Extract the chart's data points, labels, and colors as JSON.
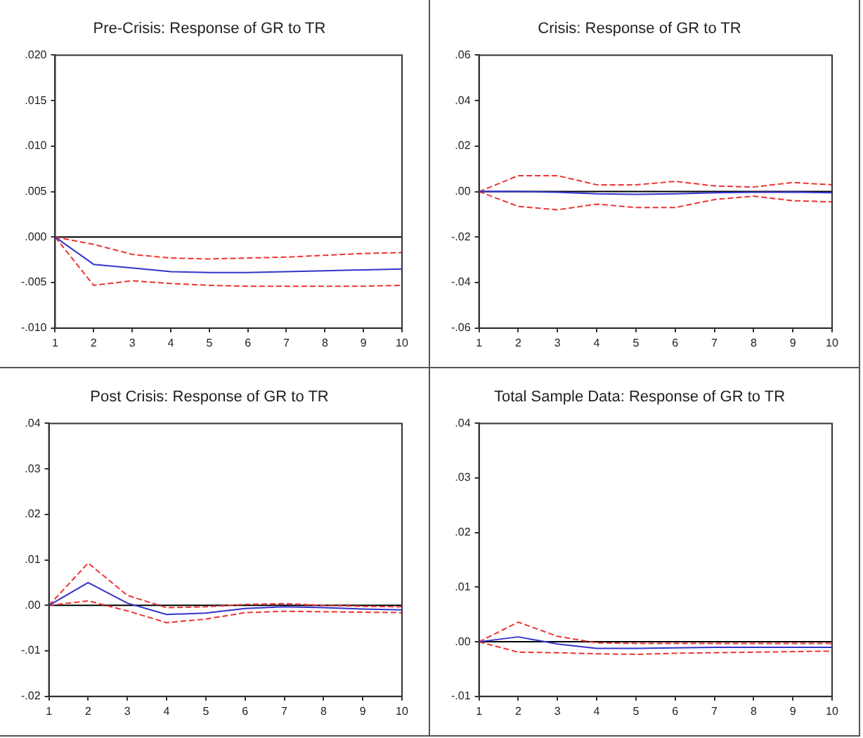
{
  "chart_data": [
    {
      "type": "line",
      "title": "Pre-Crisis: Response of GR to TR",
      "x": [
        1,
        2,
        3,
        4,
        5,
        6,
        7,
        8,
        9,
        10
      ],
      "xlim": [
        1,
        10
      ],
      "xticks": [
        1,
        2,
        3,
        4,
        5,
        6,
        7,
        8,
        9,
        10
      ],
      "ylim": [
        -0.01,
        0.02
      ],
      "yticks": [
        {
          "value": -0.01,
          "label": "-.010"
        },
        {
          "value": -0.005,
          "label": "-.005"
        },
        {
          "value": 0,
          "label": ".000"
        },
        {
          "value": 0.005,
          "label": ".005"
        },
        {
          "value": 0.01,
          "label": ".010"
        },
        {
          "value": 0.015,
          "label": ".015"
        },
        {
          "value": 0.02,
          "label": ".020"
        }
      ],
      "grid": false,
      "legend": false,
      "marker": "none",
      "ref_lines": [
        {
          "axis": "y",
          "value": 0,
          "color": "#000000"
        }
      ],
      "series": [
        {
          "color": "#3333cc",
          "line_style": "solid",
          "values": [
            0,
            -0.003,
            -0.0034,
            -0.0038,
            -0.0039,
            -0.0039,
            -0.0038,
            -0.0037,
            -0.0036,
            -0.0035
          ]
        },
        {
          "color": "#ee3333",
          "line_style": "dashed",
          "values": [
            0,
            -0.0008,
            -0.0019,
            -0.0023,
            -0.0024,
            -0.0023,
            -0.0022,
            -0.002,
            -0.0018,
            -0.0017
          ]
        },
        {
          "color": "#ee3333",
          "line_style": "dashed",
          "values": [
            0,
            -0.0053,
            -0.0048,
            -0.0051,
            -0.0053,
            -0.0054,
            -0.0054,
            -0.0054,
            -0.0054,
            -0.0053
          ]
        }
      ]
    },
    {
      "type": "line",
      "title": "Crisis: Response of GR to TR",
      "x": [
        1,
        2,
        3,
        4,
        5,
        6,
        7,
        8,
        9,
        10
      ],
      "xlim": [
        1,
        10
      ],
      "xticks": [
        1,
        2,
        3,
        4,
        5,
        6,
        7,
        8,
        9,
        10
      ],
      "ylim": [
        -0.06,
        0.06
      ],
      "yticks": [
        {
          "value": -0.06,
          "label": "-.06"
        },
        {
          "value": -0.04,
          "label": "-.04"
        },
        {
          "value": -0.02,
          "label": "-.02"
        },
        {
          "value": 0,
          "label": ".00"
        },
        {
          "value": 0.02,
          "label": ".02"
        },
        {
          "value": 0.04,
          "label": ".04"
        },
        {
          "value": 0.06,
          "label": ".06"
        }
      ],
      "grid": false,
      "legend": false,
      "marker": "none",
      "ref_lines": [
        {
          "axis": "y",
          "value": 0,
          "color": "#000000"
        }
      ],
      "series": [
        {
          "color": "#3333cc",
          "line_style": "solid",
          "values": [
            0,
            0,
            -0.0003,
            -0.001,
            -0.0012,
            -0.001,
            -0.0005,
            -0.0003,
            -0.0002,
            -0.0005
          ]
        },
        {
          "color": "#ee3333",
          "line_style": "dashed",
          "values": [
            0,
            0.007,
            0.007,
            0.003,
            0.003,
            0.0045,
            0.0025,
            0.002,
            0.004,
            0.003
          ]
        },
        {
          "color": "#ee3333",
          "line_style": "dashed",
          "values": [
            0,
            -0.0065,
            -0.008,
            -0.0055,
            -0.007,
            -0.007,
            -0.0035,
            -0.002,
            -0.004,
            -0.0045
          ]
        }
      ]
    },
    {
      "type": "line",
      "title": "Post Crisis: Response of GR to TR",
      "x": [
        1,
        2,
        3,
        4,
        5,
        6,
        7,
        8,
        9,
        10
      ],
      "xlim": [
        1,
        10
      ],
      "xticks": [
        1,
        2,
        3,
        4,
        5,
        6,
        7,
        8,
        9,
        10
      ],
      "ylim": [
        -0.02,
        0.04
      ],
      "yticks": [
        {
          "value": -0.02,
          "label": "-.02"
        },
        {
          "value": -0.01,
          "label": "-.01"
        },
        {
          "value": 0,
          "label": ".00"
        },
        {
          "value": 0.01,
          "label": ".01"
        },
        {
          "value": 0.02,
          "label": ".02"
        },
        {
          "value": 0.03,
          "label": ".03"
        },
        {
          "value": 0.04,
          "label": ".04"
        }
      ],
      "grid": false,
      "legend": false,
      "marker": "none",
      "ref_lines": [
        {
          "axis": "y",
          "value": 0,
          "color": "#000000"
        }
      ],
      "series": [
        {
          "color": "#3333cc",
          "line_style": "solid",
          "values": [
            0,
            0.005,
            0.0005,
            -0.002,
            -0.0017,
            -0.0007,
            -0.0003,
            -0.0005,
            -0.0008,
            -0.001
          ]
        },
        {
          "color": "#ee3333",
          "line_style": "dashed",
          "values": [
            0,
            0.0093,
            0.0022,
            -0.0005,
            -0.0003,
            0.0002,
            0.0004,
            0,
            -0.0002,
            -0.0003
          ]
        },
        {
          "color": "#ee3333",
          "line_style": "dashed",
          "values": [
            0,
            0.001,
            -0.0012,
            -0.0038,
            -0.003,
            -0.0016,
            -0.0013,
            -0.0014,
            -0.0015,
            -0.0016
          ]
        }
      ]
    },
    {
      "type": "line",
      "title": "Total Sample Data: Response of GR to TR",
      "x": [
        1,
        2,
        3,
        4,
        5,
        6,
        7,
        8,
        9,
        10
      ],
      "xlim": [
        1,
        10
      ],
      "xticks": [
        1,
        2,
        3,
        4,
        5,
        6,
        7,
        8,
        9,
        10
      ],
      "ylim": [
        -0.01,
        0.04
      ],
      "yticks": [
        {
          "value": -0.01,
          "label": "-.01"
        },
        {
          "value": 0,
          "label": ".00"
        },
        {
          "value": 0.01,
          "label": ".01"
        },
        {
          "value": 0.02,
          "label": ".02"
        },
        {
          "value": 0.03,
          "label": ".03"
        },
        {
          "value": 0.04,
          "label": ".04"
        }
      ],
      "grid": false,
      "legend": false,
      "marker": "none",
      "ref_lines": [
        {
          "axis": "y",
          "value": 0,
          "color": "#000000"
        }
      ],
      "series": [
        {
          "color": "#3333cc",
          "line_style": "solid",
          "values": [
            0,
            0.0009,
            -0.0004,
            -0.0012,
            -0.0012,
            -0.0011,
            -0.001,
            -0.001,
            -0.001,
            -0.001
          ]
        },
        {
          "color": "#ee3333",
          "line_style": "dashed",
          "values": [
            0,
            0.0036,
            0.001,
            -0.0002,
            -0.0003,
            -0.0003,
            -0.0003,
            -0.0003,
            -0.0003,
            -0.0003
          ]
        },
        {
          "color": "#ee3333",
          "line_style": "dashed",
          "values": [
            0,
            -0.0019,
            -0.002,
            -0.0022,
            -0.0023,
            -0.0021,
            -0.002,
            -0.0019,
            -0.0018,
            -0.0017
          ]
        }
      ]
    }
  ]
}
